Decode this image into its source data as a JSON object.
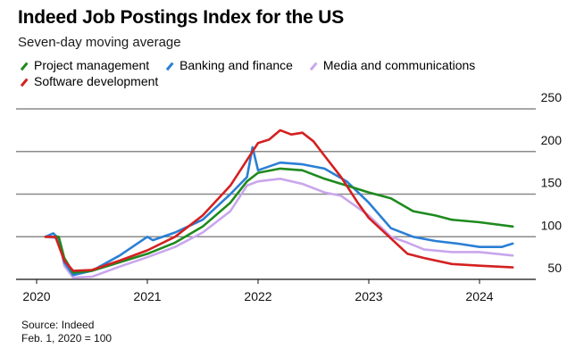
{
  "title": "Indeed Job Postings Index for the US",
  "subtitle": "Seven-day moving average",
  "source": {
    "line1": "Source: Indeed",
    "line2": "Feb. 1, 2020 = 100"
  },
  "chart_data": {
    "type": "line",
    "title": "Indeed Job Postings Index for the US",
    "subtitle": "Seven-day moving average",
    "xlabel": "",
    "ylabel": "",
    "xlim": [
      2020.0,
      2024.6
    ],
    "ylim": [
      50,
      250
    ],
    "grid": true,
    "legend_position": "top-left",
    "x_ticks": [
      2020,
      2021,
      2022,
      2023,
      2024
    ],
    "x_tick_labels": [
      "2020",
      "2021",
      "2022",
      "2023",
      "2024"
    ],
    "y_ticks": [
      50,
      100,
      150,
      200,
      250
    ],
    "y_tick_labels": [
      "50",
      "100",
      "150",
      "200",
      "250"
    ],
    "series": [
      {
        "name": "Project management",
        "color": "#1e8a1e",
        "x": [
          2020.08,
          2020.2,
          2020.25,
          2020.33,
          2020.5,
          2020.75,
          2021.0,
          2021.25,
          2021.5,
          2021.75,
          2021.9,
          2022.0,
          2022.2,
          2022.4,
          2022.6,
          2022.8,
          2023.0,
          2023.2,
          2023.4,
          2023.6,
          2023.75,
          2024.0,
          2024.3
        ],
        "values": [
          100,
          100,
          75,
          58,
          60,
          70,
          80,
          93,
          112,
          140,
          165,
          175,
          180,
          178,
          168,
          160,
          152,
          145,
          130,
          125,
          120,
          117,
          112
        ]
      },
      {
        "name": "Banking and finance",
        "color": "#2a7fd4",
        "x": [
          2020.08,
          2020.15,
          2020.2,
          2020.25,
          2020.33,
          2020.5,
          2020.75,
          2021.0,
          2021.05,
          2021.25,
          2021.5,
          2021.75,
          2021.9,
          2021.95,
          2022.0,
          2022.2,
          2022.4,
          2022.6,
          2022.8,
          2023.0,
          2023.2,
          2023.4,
          2023.6,
          2023.8,
          2024.0,
          2024.2,
          2024.3
        ],
        "values": [
          100,
          104,
          98,
          70,
          55,
          60,
          78,
          100,
          96,
          105,
          120,
          150,
          170,
          205,
          178,
          187,
          185,
          180,
          165,
          140,
          110,
          100,
          95,
          92,
          88,
          88,
          92
        ]
      },
      {
        "name": "Media and communications",
        "color": "#c9a6ec",
        "x": [
          2020.08,
          2020.2,
          2020.25,
          2020.33,
          2020.5,
          2020.75,
          2021.0,
          2021.25,
          2021.5,
          2021.75,
          2021.9,
          2022.0,
          2022.2,
          2022.4,
          2022.6,
          2022.75,
          2023.0,
          2023.2,
          2023.35,
          2023.5,
          2023.75,
          2024.0,
          2024.3
        ],
        "values": [
          100,
          98,
          66,
          52,
          53,
          65,
          76,
          88,
          105,
          130,
          160,
          165,
          168,
          162,
          152,
          148,
          125,
          100,
          93,
          85,
          82,
          82,
          78
        ]
      },
      {
        "name": "Software development",
        "color": "#d42020",
        "x": [
          2020.08,
          2020.17,
          2020.25,
          2020.33,
          2020.5,
          2020.75,
          2021.0,
          2021.25,
          2021.5,
          2021.75,
          2021.9,
          2022.0,
          2022.1,
          2022.2,
          2022.3,
          2022.4,
          2022.5,
          2022.6,
          2022.75,
          2022.9,
          2023.0,
          2023.2,
          2023.35,
          2023.5,
          2023.75,
          2024.0,
          2024.3
        ],
        "values": [
          100,
          100,
          72,
          60,
          61,
          72,
          84,
          100,
          125,
          160,
          190,
          210,
          214,
          225,
          220,
          222,
          212,
          195,
          170,
          140,
          122,
          98,
          80,
          75,
          68,
          66,
          64
        ]
      }
    ]
  }
}
